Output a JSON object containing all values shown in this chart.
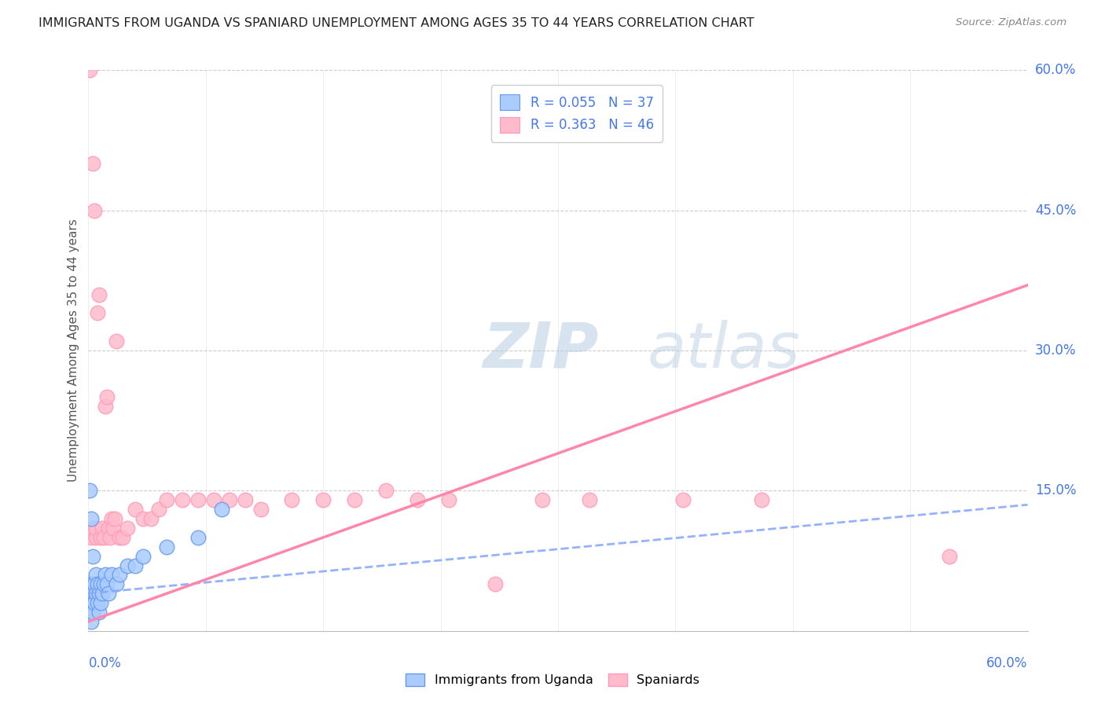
{
  "title": "IMMIGRANTS FROM UGANDA VS SPANIARD UNEMPLOYMENT AMONG AGES 35 TO 44 YEARS CORRELATION CHART",
  "source": "Source: ZipAtlas.com",
  "ylabel": "Unemployment Among Ages 35 to 44 years",
  "legend_r1": "R = 0.055",
  "legend_n1": "N = 37",
  "legend_r2": "R = 0.363",
  "legend_n2": "N = 46",
  "xlim": [
    0.0,
    0.6
  ],
  "ylim": [
    0.0,
    0.6
  ],
  "background_color": "#ffffff",
  "grid_color": "#cccccc",
  "blue_scatter_color": "#aaccff",
  "blue_edge_color": "#6699ee",
  "pink_scatter_color": "#ffbbcc",
  "pink_edge_color": "#ff99bb",
  "blue_line_color": "#88aaff",
  "pink_line_color": "#ff88aa",
  "text_blue": "#4477ee",
  "watermark_color": "#ddeeff",
  "scatter_blue_x": [
    0.001,
    0.001,
    0.001,
    0.002,
    0.002,
    0.002,
    0.002,
    0.003,
    0.003,
    0.003,
    0.004,
    0.004,
    0.005,
    0.005,
    0.006,
    0.006,
    0.007,
    0.007,
    0.008,
    0.008,
    0.009,
    0.01,
    0.011,
    0.012,
    0.013,
    0.015,
    0.018,
    0.02,
    0.025,
    0.03,
    0.035,
    0.05,
    0.07,
    0.085,
    0.001,
    0.002,
    0.003
  ],
  "scatter_blue_y": [
    0.03,
    0.02,
    0.04,
    0.05,
    0.03,
    0.02,
    0.01,
    0.04,
    0.03,
    0.02,
    0.05,
    0.03,
    0.06,
    0.04,
    0.05,
    0.03,
    0.04,
    0.02,
    0.05,
    0.03,
    0.04,
    0.05,
    0.06,
    0.05,
    0.04,
    0.06,
    0.05,
    0.06,
    0.07,
    0.07,
    0.08,
    0.09,
    0.1,
    0.13,
    0.15,
    0.12,
    0.08
  ],
  "scatter_pink_x": [
    0.001,
    0.002,
    0.003,
    0.004,
    0.005,
    0.005,
    0.006,
    0.007,
    0.008,
    0.009,
    0.01,
    0.011,
    0.012,
    0.013,
    0.014,
    0.015,
    0.016,
    0.017,
    0.018,
    0.02,
    0.022,
    0.025,
    0.03,
    0.035,
    0.04,
    0.045,
    0.05,
    0.06,
    0.07,
    0.08,
    0.09,
    0.1,
    0.11,
    0.13,
    0.15,
    0.17,
    0.19,
    0.21,
    0.23,
    0.26,
    0.29,
    0.32,
    0.38,
    0.43,
    0.55,
    0.003
  ],
  "scatter_pink_y": [
    0.6,
    0.1,
    0.11,
    0.45,
    0.1,
    0.11,
    0.34,
    0.36,
    0.1,
    0.11,
    0.1,
    0.24,
    0.25,
    0.11,
    0.1,
    0.12,
    0.11,
    0.12,
    0.31,
    0.1,
    0.1,
    0.11,
    0.13,
    0.12,
    0.12,
    0.13,
    0.14,
    0.14,
    0.14,
    0.14,
    0.14,
    0.14,
    0.13,
    0.14,
    0.14,
    0.14,
    0.15,
    0.14,
    0.14,
    0.05,
    0.14,
    0.14,
    0.14,
    0.14,
    0.08,
    0.5
  ],
  "pink_trend_x0": 0.0,
  "pink_trend_y0": 0.01,
  "pink_trend_x1": 0.6,
  "pink_trend_y1": 0.37,
  "blue_trend_x0": 0.0,
  "blue_trend_y0": 0.04,
  "blue_trend_x1": 0.6,
  "blue_trend_y1": 0.135
}
